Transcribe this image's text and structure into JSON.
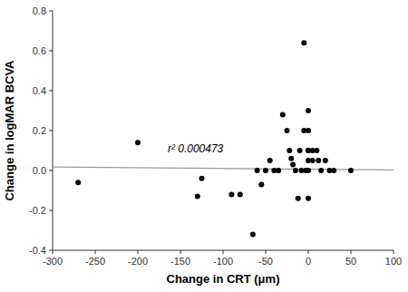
{
  "chart_data": {
    "type": "scatter",
    "xlabel": "Change in CRT (μm)",
    "ylabel": "Change in logMAR BCVA",
    "series": [
      {
        "type": "scatter",
        "color": "#000000",
        "x": [
          -270,
          -200,
          -130,
          -125,
          -90,
          -80,
          -65,
          -60,
          -55,
          -50,
          -45,
          -40,
          -35,
          -30,
          -25,
          -22,
          -20,
          -18,
          -15,
          -12,
          -10,
          -8,
          -5,
          -5,
          -3,
          0,
          0,
          0,
          0,
          0,
          0,
          0,
          5,
          5,
          10,
          12,
          15,
          20,
          25,
          30,
          50
        ],
        "values": [
          -0.06,
          0.14,
          -0.13,
          -0.04,
          -0.12,
          -0.12,
          -0.32,
          0.0,
          -0.07,
          0.0,
          0.05,
          0.0,
          0.0,
          0.28,
          0.2,
          0.1,
          0.06,
          0.03,
          0.0,
          -0.14,
          0.1,
          0.0,
          0.64,
          0.2,
          0.0,
          0.3,
          0.2,
          0.1,
          0.1,
          0.05,
          0.0,
          -0.14,
          0.1,
          0.05,
          0.1,
          0.05,
          0.0,
          0.05,
          0.0,
          0.0,
          0.0
        ]
      },
      {
        "type": "line",
        "color": "#999999",
        "x": [
          -300,
          100
        ],
        "values": [
          0.018,
          0.003
        ]
      }
    ],
    "annotations": [
      {
        "text": "r² 0.000473",
        "x": -165,
        "y": 0.09
      }
    ],
    "xlim": [
      -300,
      100
    ],
    "ylim": [
      -0.4,
      0.8
    ],
    "xticks": [
      -300,
      -250,
      -200,
      -150,
      -100,
      -50,
      0,
      50,
      100
    ],
    "yticks": [
      -0.4,
      -0.2,
      {
        "value": 0.0,
        "label": "0.0"
      },
      0.2,
      0.4,
      0.6,
      0.8
    ],
    "grid": false
  }
}
